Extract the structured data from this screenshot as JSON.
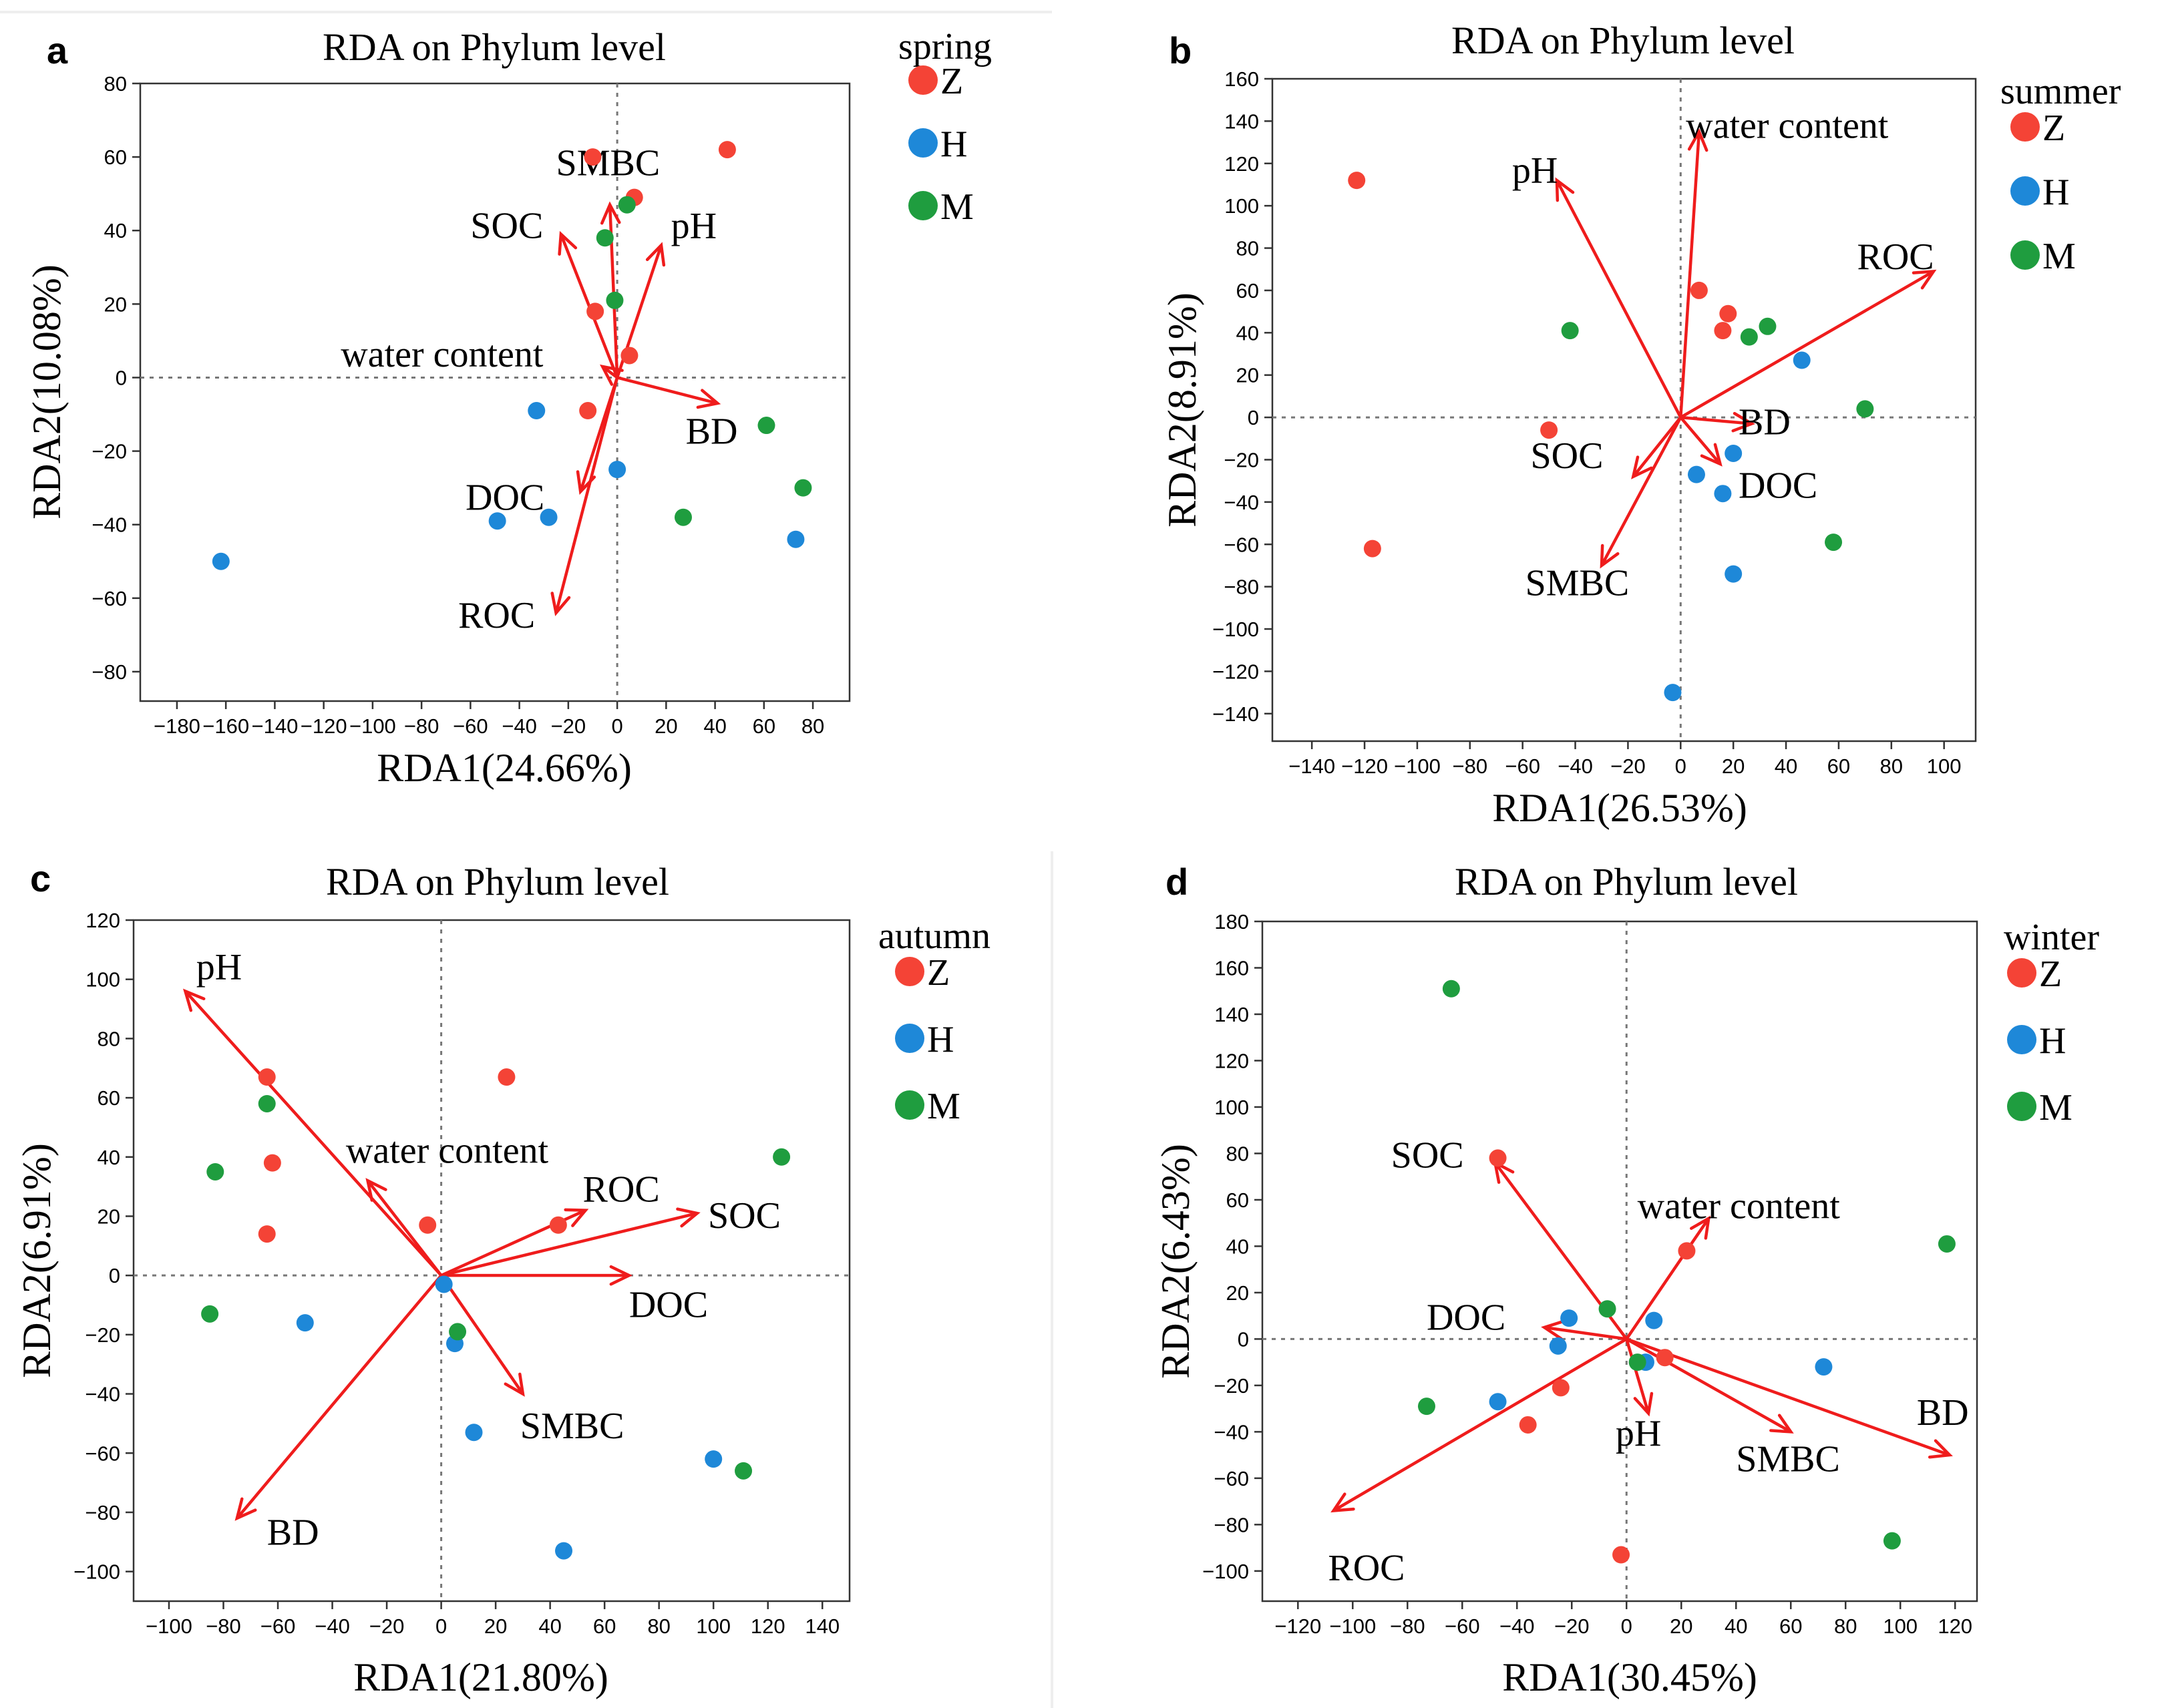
{
  "colors": {
    "Z": "#f44336",
    "H": "#1e88d8",
    "M": "#1f9d3f",
    "arrow": "#ef1c1c"
  },
  "chart_data": [
    {
      "type": "scatter",
      "panel": "a",
      "title": "RDA on Phylum level",
      "xlabel": "RDA1(24.66%)",
      "ylabel": "RDA2(10.08%)",
      "xlim": [
        -195,
        95
      ],
      "ylim": [
        -88,
        80
      ],
      "xticks": [
        -180,
        -160,
        -140,
        -120,
        -100,
        -80,
        -60,
        -40,
        -20,
        0,
        20,
        40,
        60,
        80
      ],
      "yticks": [
        -80,
        -60,
        -40,
        -20,
        0,
        20,
        40,
        60,
        80
      ],
      "legend": {
        "title": "spring",
        "entries": [
          "Z",
          "H",
          "M"
        ]
      },
      "series": [
        {
          "name": "Z",
          "points": [
            [
              -10,
              60
            ],
            [
              45,
              62
            ],
            [
              7,
              49
            ],
            [
              -9,
              18
            ],
            [
              5,
              6
            ],
            [
              -12,
              -9
            ]
          ]
        },
        {
          "name": "H",
          "points": [
            [
              -33,
              -9
            ],
            [
              0,
              -25
            ],
            [
              -49,
              -39
            ],
            [
              -28,
              -38
            ],
            [
              -162,
              -50
            ],
            [
              73,
              -44
            ]
          ]
        },
        {
          "name": "M",
          "points": [
            [
              4,
              47
            ],
            [
              -5,
              38
            ],
            [
              -1,
              21
            ],
            [
              61,
              -13
            ],
            [
              76,
              -30
            ],
            [
              27,
              -38
            ]
          ]
        }
      ],
      "arrows": [
        {
          "label": "SMBC",
          "end": [
            -3,
            47
          ],
          "text": [
            -25,
            55
          ]
        },
        {
          "label": "SOC",
          "end": [
            -23,
            39
          ],
          "text": [
            -60,
            38
          ]
        },
        {
          "label": "pH",
          "end": [
            18,
            36
          ],
          "text": [
            22,
            38
          ]
        },
        {
          "label": "water content",
          "end": [
            -6,
            3
          ],
          "text": [
            -113,
            3
          ]
        },
        {
          "label": "BD",
          "end": [
            41,
            -7
          ],
          "text": [
            28,
            -18
          ]
        },
        {
          "label": "DOC",
          "end": [
            -15,
            -31
          ],
          "text": [
            -62,
            -36
          ]
        },
        {
          "label": "ROC",
          "end": [
            -25,
            -64
          ],
          "text": [
            -65,
            -68
          ]
        }
      ]
    },
    {
      "type": "scatter",
      "panel": "b",
      "title": "RDA on Phylum level",
      "xlabel": "RDA1(26.53%)",
      "ylabel": "RDA2(8.91%)",
      "xlim": [
        -155,
        112
      ],
      "ylim": [
        -153,
        160
      ],
      "xticks": [
        -140,
        -120,
        -100,
        -80,
        -60,
        -40,
        -20,
        0,
        20,
        40,
        60,
        80,
        100
      ],
      "yticks": [
        -140,
        -120,
        -100,
        -80,
        -60,
        -40,
        -20,
        0,
        20,
        40,
        60,
        80,
        100,
        120,
        140,
        160
      ],
      "legend": {
        "title": "summer",
        "entries": [
          "Z",
          "H",
          "M"
        ]
      },
      "series": [
        {
          "name": "Z",
          "points": [
            [
              -123,
              112
            ],
            [
              7,
              60
            ],
            [
              18,
              49
            ],
            [
              16,
              41
            ],
            [
              -50,
              -6
            ],
            [
              -117,
              -62
            ]
          ]
        },
        {
          "name": "H",
          "points": [
            [
              46,
              27
            ],
            [
              20,
              -17
            ],
            [
              6,
              -27
            ],
            [
              16,
              -36
            ],
            [
              20,
              -74
            ],
            [
              -3,
              -130
            ]
          ]
        },
        {
          "name": "M",
          "points": [
            [
              -42,
              41
            ],
            [
              26,
              38
            ],
            [
              33,
              43
            ],
            [
              70,
              4
            ],
            [
              58,
              -59
            ]
          ]
        }
      ],
      "arrows": [
        {
          "label": "water content",
          "end": [
            7,
            135
          ],
          "text": [
            2,
            132
          ]
        },
        {
          "label": "pH",
          "end": [
            -47,
            112
          ],
          "text": [
            -64,
            111
          ]
        },
        {
          "label": "ROC",
          "end": [
            96,
            69
          ],
          "text": [
            67,
            70
          ]
        },
        {
          "label": "BD",
          "end": [
            27,
            -3
          ],
          "text": [
            22,
            -8
          ]
        },
        {
          "label": "SOC",
          "end": [
            -18,
            -28
          ],
          "text": [
            -57,
            -24
          ]
        },
        {
          "label": "DOC",
          "end": [
            15,
            -22
          ],
          "text": [
            22,
            -38
          ]
        },
        {
          "label": "SMBC",
          "end": [
            -30,
            -70
          ],
          "text": [
            -59,
            -84
          ]
        }
      ]
    },
    {
      "type": "scatter",
      "panel": "c",
      "title": "RDA on Phylum level",
      "xlabel": "RDA1(21.80%)",
      "ylabel": "RDA2(6.91%)",
      "xlim": [
        -113,
        150
      ],
      "ylim": [
        -110,
        120
      ],
      "xticks": [
        -100,
        -80,
        -60,
        -40,
        -20,
        0,
        20,
        40,
        60,
        80,
        100,
        120,
        140
      ],
      "yticks": [
        -100,
        -80,
        -60,
        -40,
        -20,
        0,
        20,
        40,
        60,
        80,
        100,
        120
      ],
      "legend": {
        "title": "autumn",
        "entries": [
          "Z",
          "H",
          "M"
        ]
      },
      "series": [
        {
          "name": "Z",
          "points": [
            [
              -64,
              67
            ],
            [
              -62,
              38
            ],
            [
              -64,
              14
            ],
            [
              24,
              67
            ],
            [
              -5,
              17
            ],
            [
              43,
              17
            ]
          ]
        },
        {
          "name": "H",
          "points": [
            [
              -50,
              -16
            ],
            [
              1,
              -3
            ],
            [
              5,
              -23
            ],
            [
              12,
              -53
            ],
            [
              100,
              -62
            ],
            [
              45,
              -93
            ]
          ]
        },
        {
          "name": "M",
          "points": [
            [
              -64,
              58
            ],
            [
              -83,
              35
            ],
            [
              -85,
              -13
            ],
            [
              6,
              -19
            ],
            [
              125,
              40
            ],
            [
              111,
              -66
            ]
          ]
        }
      ],
      "arrows": [
        {
          "label": "pH",
          "end": [
            -94,
            96
          ],
          "text": [
            -90,
            100
          ]
        },
        {
          "label": "water content",
          "end": [
            -27,
            32
          ],
          "text": [
            -35,
            38
          ]
        },
        {
          "label": "ROC",
          "end": [
            53,
            22
          ],
          "text": [
            52,
            25
          ]
        },
        {
          "label": "SOC",
          "end": [
            94,
            21
          ],
          "text": [
            98,
            16
          ]
        },
        {
          "label": "DOC",
          "end": [
            69,
            0
          ],
          "text": [
            69,
            -14
          ]
        },
        {
          "label": "SMBC",
          "end": [
            30,
            -40
          ],
          "text": [
            29,
            -55
          ]
        },
        {
          "label": "BD",
          "end": [
            -75,
            -82
          ],
          "text": [
            -64,
            -91
          ]
        }
      ]
    },
    {
      "type": "scatter",
      "panel": "d",
      "title": "RDA on Phylum level",
      "xlabel": "RDA1(30.45%)",
      "ylabel": "RDA2(6.43%)",
      "xlim": [
        -133,
        128
      ],
      "ylim": [
        -113,
        180
      ],
      "xticks": [
        -120,
        -100,
        -80,
        -60,
        -40,
        -20,
        0,
        20,
        40,
        60,
        80,
        100,
        120
      ],
      "yticks": [
        -100,
        -80,
        -60,
        -40,
        -20,
        0,
        20,
        40,
        60,
        80,
        100,
        120,
        140,
        160,
        180
      ],
      "legend": {
        "title": "winter",
        "entries": [
          "Z",
          "H",
          "M"
        ]
      },
      "series": [
        {
          "name": "Z",
          "points": [
            [
              -47,
              78
            ],
            [
              22,
              38
            ],
            [
              14,
              -8
            ],
            [
              -24,
              -21
            ],
            [
              -36,
              -37
            ],
            [
              -2,
              -93
            ]
          ]
        },
        {
          "name": "H",
          "points": [
            [
              -21,
              9
            ],
            [
              10,
              8
            ],
            [
              -25,
              -3
            ],
            [
              7,
              -10
            ],
            [
              -47,
              -27
            ],
            [
              72,
              -12
            ]
          ]
        },
        {
          "name": "M",
          "points": [
            [
              -64,
              151
            ],
            [
              -7,
              13
            ],
            [
              4,
              -10
            ],
            [
              -73,
              -29
            ],
            [
              117,
              41
            ],
            [
              97,
              -87
            ]
          ]
        }
      ],
      "arrows": [
        {
          "label": "SOC",
          "end": [
            -48,
            76
          ],
          "text": [
            -86,
            74
          ]
        },
        {
          "label": "water content",
          "end": [
            30,
            52
          ],
          "text": [
            4,
            52
          ]
        },
        {
          "label": "DOC",
          "end": [
            -30,
            5
          ],
          "text": [
            -73,
            4
          ]
        },
        {
          "label": "pH",
          "end": [
            8,
            -32
          ],
          "text": [
            -4,
            -46
          ]
        },
        {
          "label": "SMBC",
          "end": [
            60,
            -40
          ],
          "text": [
            40,
            -57
          ]
        },
        {
          "label": "BD",
          "end": [
            118,
            -50
          ],
          "text": [
            106,
            -37
          ]
        },
        {
          "label": "ROC",
          "end": [
            -107,
            -74
          ],
          "text": [
            -109,
            -104
          ]
        }
      ]
    }
  ]
}
